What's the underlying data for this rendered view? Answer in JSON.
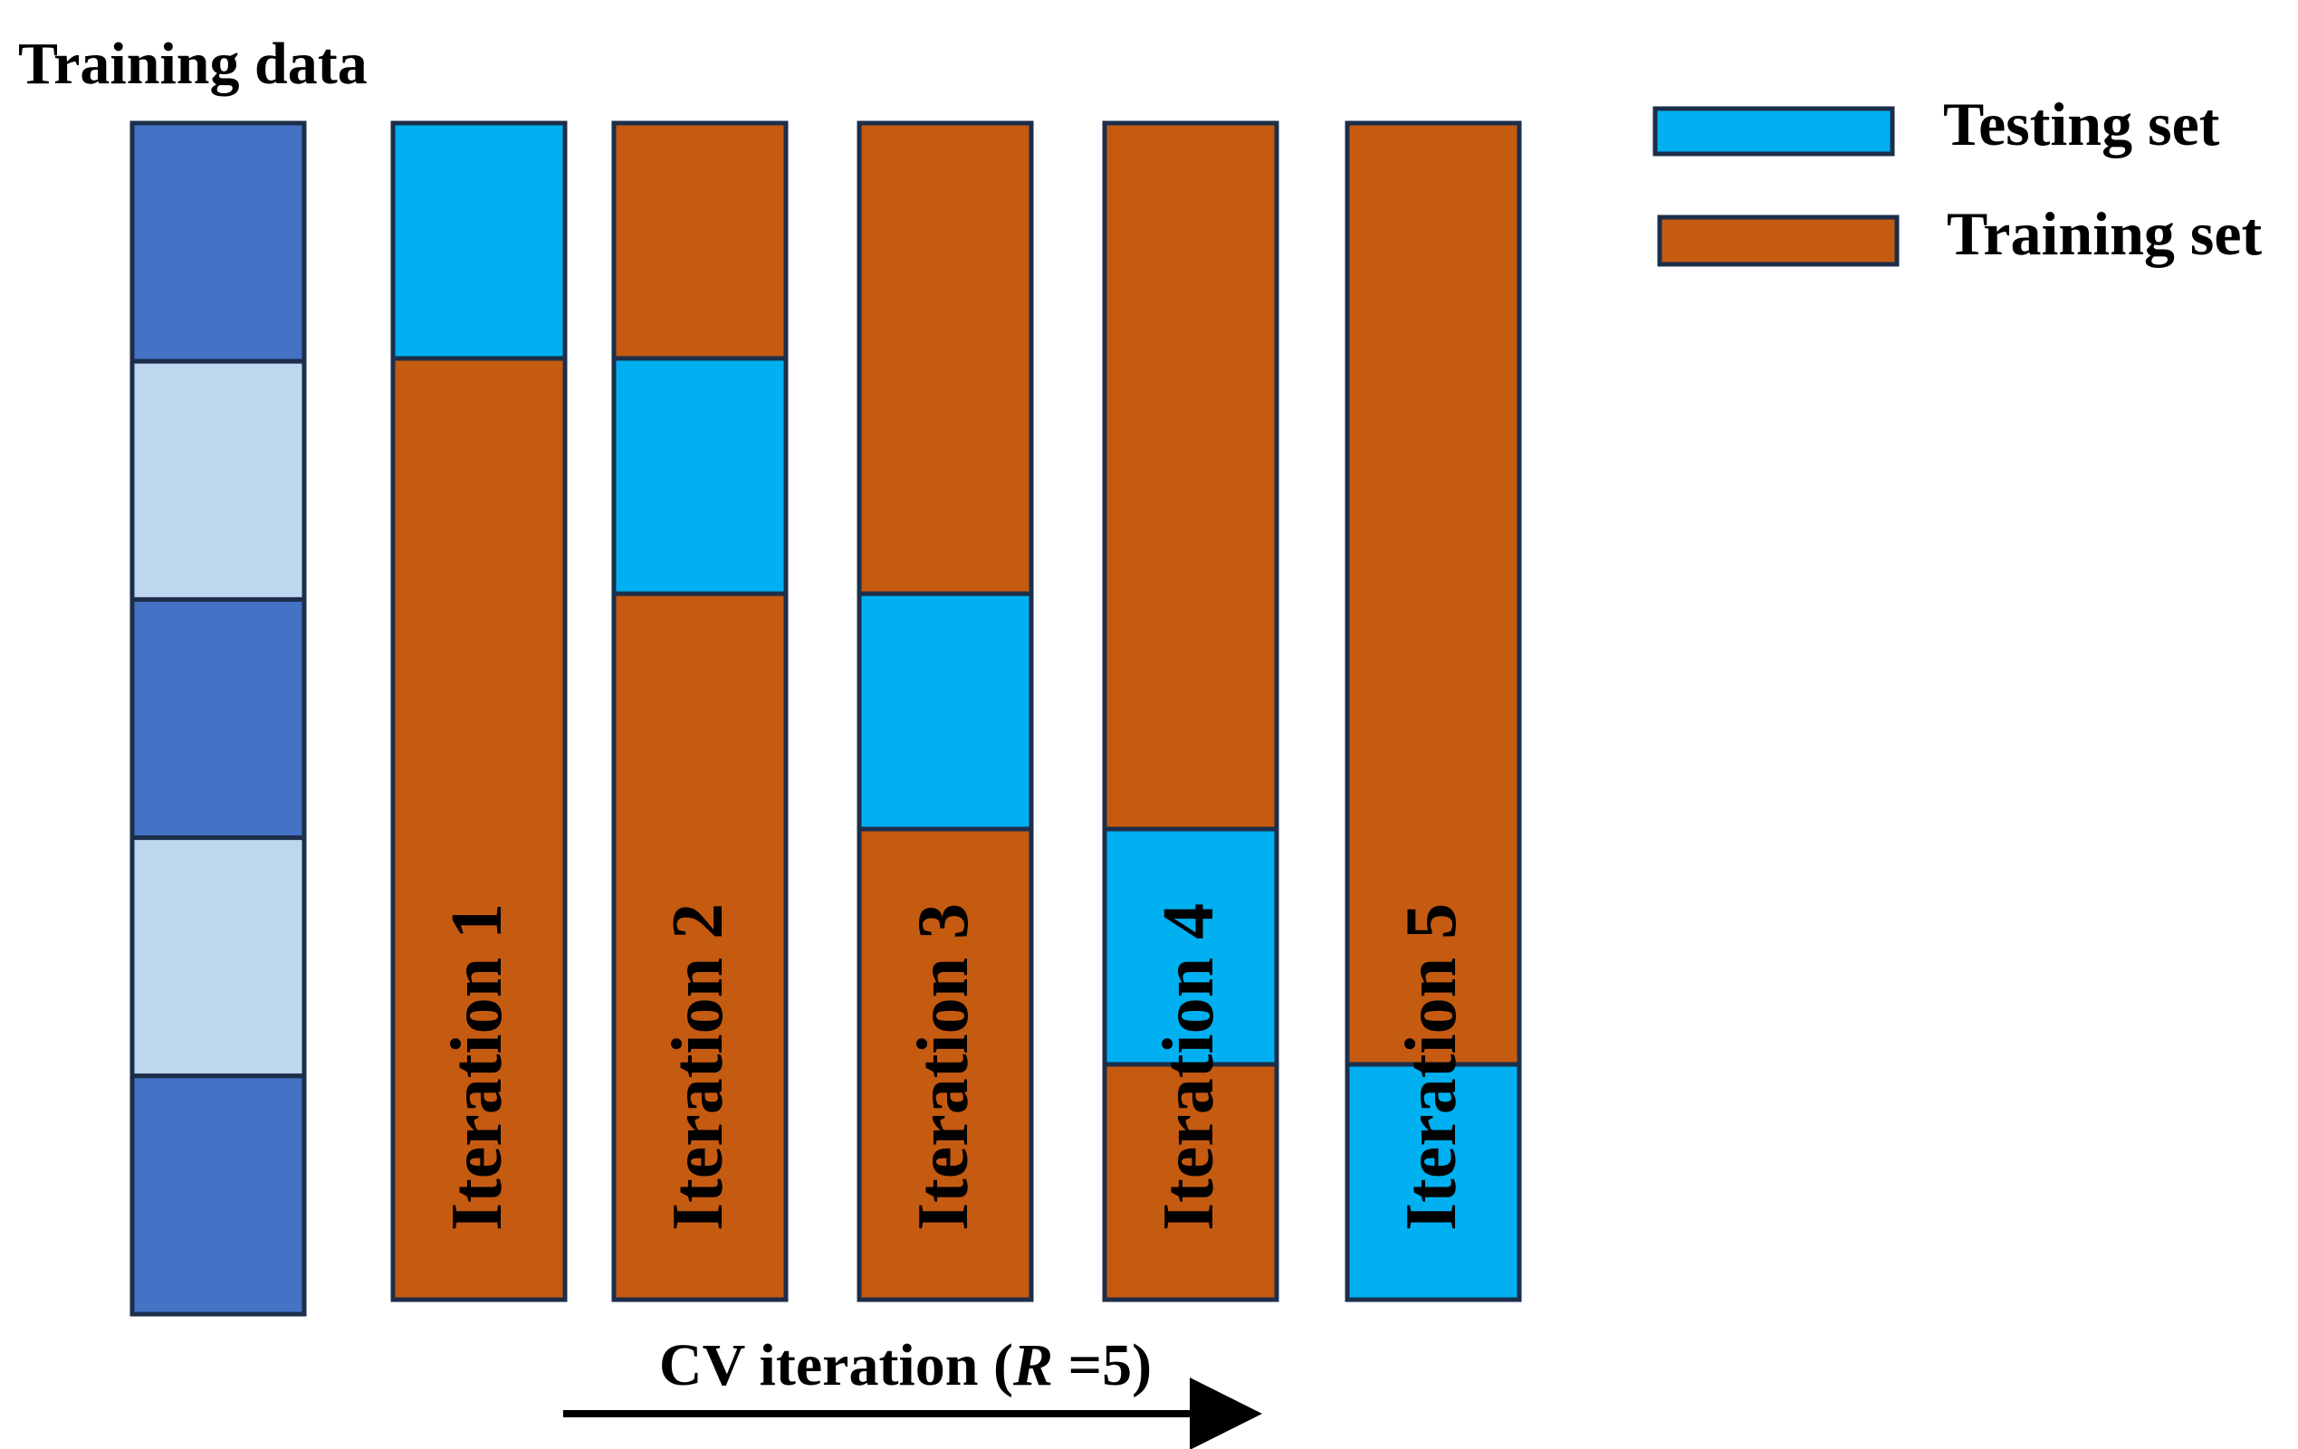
{
  "title": "Training data",
  "legend": {
    "testing_label": "Testing set",
    "training_label": "Training set"
  },
  "colors": {
    "data_dark": "#4472c4",
    "data_light": "#bdd7ee",
    "testing": "#00b0f0",
    "training": "#c55a11",
    "border": "#1c2e4a"
  },
  "data_column": {
    "folds": [
      "dark",
      "light",
      "dark",
      "light",
      "dark"
    ]
  },
  "iterations": [
    {
      "label": "Iteration 1",
      "test_fold": 1
    },
    {
      "label": "Iteration 2",
      "test_fold": 2
    },
    {
      "label": "Iteration 3",
      "test_fold": 3
    },
    {
      "label": "Iteration 4",
      "test_fold": 4
    },
    {
      "label": "Iteration 5",
      "test_fold": 5
    }
  ],
  "cv_label": {
    "prefix": "CV iteration (",
    "variable": "R",
    "suffix": " =5)"
  }
}
